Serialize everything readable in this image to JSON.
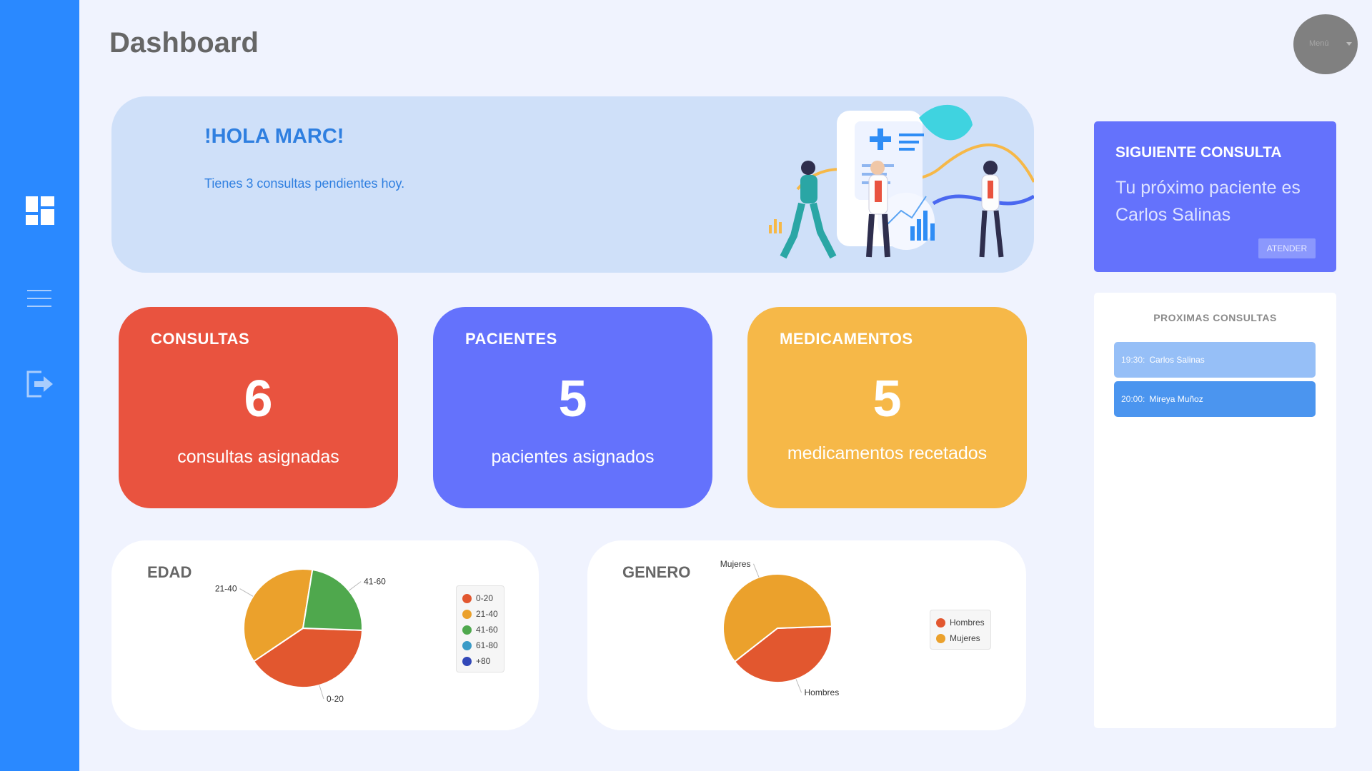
{
  "header": {
    "title": "Dashboard",
    "menu_label": "Menú"
  },
  "sidebar": {
    "items": [
      {
        "name": "dashboard",
        "icon": "dashboard-grid-icon"
      },
      {
        "name": "menu",
        "icon": "hamburger-menu-icon"
      },
      {
        "name": "logout",
        "icon": "logout-icon"
      }
    ]
  },
  "hero": {
    "greeting": "!HOLA MARC!",
    "subtitle": "Tienes 3 consultas pendientes hoy."
  },
  "stats": [
    {
      "title": "CONSULTAS",
      "value": "6",
      "description": "consultas asignadas",
      "color": "#e9533f"
    },
    {
      "title": "PACIENTES",
      "value": "5",
      "description": "pacientes asignados",
      "color": "#6472fc"
    },
    {
      "title": "MEDICAMENTOS",
      "value": "5",
      "description": "medicamentos recetados",
      "color": "#f6b848"
    }
  ],
  "next_consult": {
    "title": "SIGUIENTE CONSULTA",
    "text": "Tu próximo paciente es Carlos Salinas",
    "button": "ATENDER"
  },
  "upcoming": {
    "title": "PROXIMAS CONSULTAS",
    "items": [
      {
        "time": "19:30:",
        "name": "Carlos Salinas",
        "color": "#96bff7"
      },
      {
        "time": "20:00:",
        "name": "Mireya Muñoz",
        "color": "#4b95ef"
      }
    ]
  },
  "chart_data": [
    {
      "type": "pie",
      "title": "EDAD",
      "categories": [
        "0-20",
        "21-40",
        "41-60",
        "61-80",
        "+80"
      ],
      "values": [
        40,
        37,
        23,
        0,
        0
      ],
      "colors": [
        "#e2572f",
        "#eba12c",
        "#4fa84d",
        "#3a9bc7",
        "#3248b8"
      ],
      "legend": "right"
    },
    {
      "type": "pie",
      "title": "GENERO",
      "categories": [
        "Hombres",
        "Mujeres"
      ],
      "values": [
        40,
        60
      ],
      "colors": [
        "#e2572f",
        "#eba12c"
      ],
      "legend": "right"
    }
  ]
}
